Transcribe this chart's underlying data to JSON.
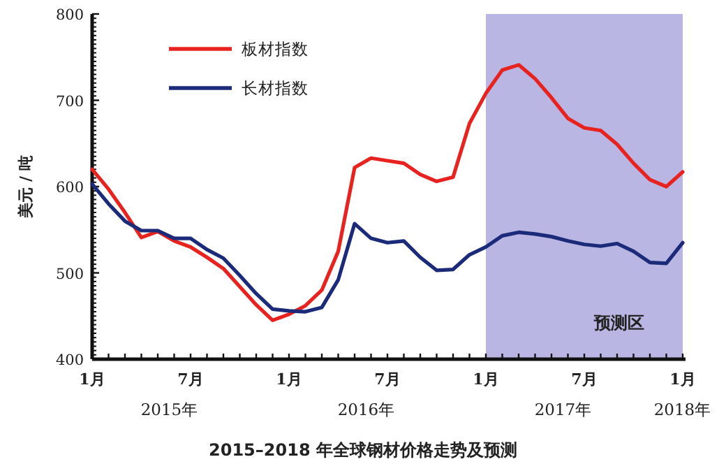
{
  "chart_data": {
    "type": "line",
    "title": "2015–2018 年全球钢材价格走势及预测",
    "ylabel": "美元 / 吨",
    "x": [
      "2015-01",
      "2015-02",
      "2015-03",
      "2015-04",
      "2015-05",
      "2015-06",
      "2015-07",
      "2015-08",
      "2015-09",
      "2015-10",
      "2015-11",
      "2015-12",
      "2016-01",
      "2016-02",
      "2016-03",
      "2016-04",
      "2016-05",
      "2016-06",
      "2016-07",
      "2016-08",
      "2016-09",
      "2016-10",
      "2016-11",
      "2016-12",
      "2017-01",
      "2017-02",
      "2017-03",
      "2017-04",
      "2017-05",
      "2017-06",
      "2017-07",
      "2017-08",
      "2017-09",
      "2017-10",
      "2017-11",
      "2017-12",
      "2018-01"
    ],
    "series": [
      {
        "name": "板材指数",
        "color": "#e8231f",
        "values": [
          620,
          597,
          570,
          541,
          548,
          537,
          530,
          518,
          505,
          484,
          463,
          445,
          452,
          462,
          480,
          525,
          622,
          633,
          630,
          627,
          614,
          606,
          611,
          673,
          708,
          735,
          741,
          725,
          703,
          679,
          668,
          665,
          649,
          627,
          608,
          600,
          617
        ]
      },
      {
        "name": "长材指数",
        "color": "#1c2a7a",
        "values": [
          603,
          580,
          560,
          549,
          549,
          540,
          540,
          527,
          517,
          497,
          476,
          458,
          456,
          455,
          460,
          492,
          557,
          540,
          535,
          537,
          518,
          503,
          504,
          521,
          530,
          543,
          547,
          545,
          542,
          537,
          533,
          531,
          534,
          525,
          512,
          511,
          535
        ]
      }
    ],
    "xlim": [
      "2015-01",
      "2018-01"
    ],
    "xticks": [
      {
        "value": "2015-01",
        "label": "1月"
      },
      {
        "value": "2015-02",
        "label": null
      },
      {
        "value": "2015-03",
        "label": null
      },
      {
        "value": "2015-04",
        "label": null
      },
      {
        "value": "2015-05",
        "label": null
      },
      {
        "value": "2015-06",
        "label": null
      },
      {
        "value": "2015-07",
        "label": "7月"
      },
      {
        "value": "2015-08",
        "label": null
      },
      {
        "value": "2015-09",
        "label": null
      },
      {
        "value": "2015-10",
        "label": null
      },
      {
        "value": "2015-11",
        "label": null
      },
      {
        "value": "2015-12",
        "label": null
      },
      {
        "value": "2016-01",
        "label": "1月"
      },
      {
        "value": "2016-02",
        "label": null
      },
      {
        "value": "2016-03",
        "label": null
      },
      {
        "value": "2016-04",
        "label": null
      },
      {
        "value": "2016-05",
        "label": null
      },
      {
        "value": "2016-06",
        "label": null
      },
      {
        "value": "2016-07",
        "label": "7月"
      },
      {
        "value": "2016-08",
        "label": null
      },
      {
        "value": "2016-09",
        "label": null
      },
      {
        "value": "2016-10",
        "label": null
      },
      {
        "value": "2016-11",
        "label": null
      },
      {
        "value": "2016-12",
        "label": null
      },
      {
        "value": "2017-01",
        "label": "1月"
      },
      {
        "value": "2017-02",
        "label": null
      },
      {
        "value": "2017-03",
        "label": null
      },
      {
        "value": "2017-04",
        "label": null
      },
      {
        "value": "2017-05",
        "label": null
      },
      {
        "value": "2017-06",
        "label": null
      },
      {
        "value": "2017-07",
        "label": "7月"
      },
      {
        "value": "2017-08",
        "label": null
      },
      {
        "value": "2017-09",
        "label": null
      },
      {
        "value": "2017-10",
        "label": null
      },
      {
        "value": "2017-11",
        "label": null
      },
      {
        "value": "2017-12",
        "label": null
      },
      {
        "value": "2018-01",
        "label": "1月"
      }
    ],
    "ylim": [
      400,
      800
    ],
    "yticks": [
      400,
      500,
      600,
      700,
      800
    ],
    "bands": [
      {
        "axis": "x",
        "from": "2017-01",
        "to": "2018-01",
        "label": "预测区",
        "color": "#b9b6e3"
      }
    ],
    "annotations": [
      "2015年",
      "2016年",
      "2017年",
      "2018年"
    ],
    "legend": "top left",
    "grid": false,
    "marker": "none",
    "line_style": "solid"
  }
}
